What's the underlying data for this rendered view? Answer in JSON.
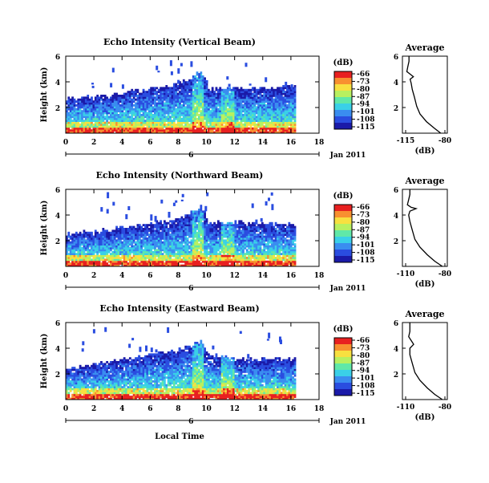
{
  "chart_data": [
    {
      "type": "heatmap",
      "title": "Echo Intensity (Vertical Beam)",
      "ylabel": "Height (km)",
      "xlim": [
        0,
        18
      ],
      "ylim": [
        0,
        6
      ],
      "xticks": [
        "0",
        "2",
        "4",
        "6",
        "8",
        "10",
        "12",
        "14",
        "16",
        "18"
      ],
      "yticks": [
        "2",
        "4",
        "6"
      ],
      "day_marker": "6",
      "date_label": "Jan 2011",
      "colorbar": {
        "unit": "(dB)",
        "ticks": [
          "-66",
          "-73",
          "-80",
          "-87",
          "-94",
          "-101",
          "-108",
          "-115"
        ]
      },
      "average": {
        "title": "Average",
        "xlabel": "(dB)",
        "xticks": [
          "-115",
          "-80"
        ],
        "yticks": [
          "2",
          "4",
          "6"
        ],
        "profile": [
          [
            -84,
            0
          ],
          [
            -90,
            0.4
          ],
          [
            -97,
            0.9
          ],
          [
            -103,
            1.5
          ],
          [
            -106,
            2.1
          ],
          [
            -108,
            2.8
          ],
          [
            -110,
            3.4
          ],
          [
            -111,
            3.9
          ],
          [
            -112,
            4.2
          ],
          [
            -109,
            4.4
          ],
          [
            -112,
            4.6
          ],
          [
            -115,
            4.8
          ],
          [
            -114,
            5.2
          ],
          [
            -113,
            5.6
          ],
          [
            -113,
            6
          ]
        ]
      },
      "echo_top_km": [
        2.8,
        2.8,
        2.9,
        2.9,
        3.0,
        3.0,
        3.1,
        3.2,
        3.3,
        3.4,
        3.5,
        3.6,
        3.7,
        3.8,
        3.9,
        4.2,
        4.6,
        4.9,
        3.4,
        3.6,
        3.6,
        3.6,
        3.6,
        3.6,
        3.6,
        3.6,
        3.6,
        3.7,
        3.8,
        3.7
      ]
    },
    {
      "type": "heatmap",
      "title": "Echo Intensity (Northward Beam)",
      "ylabel": "Height (km)",
      "xlim": [
        0,
        18
      ],
      "ylim": [
        0,
        6
      ],
      "xticks": [
        "0",
        "2",
        "4",
        "6",
        "8",
        "10",
        "12",
        "14",
        "16",
        "18"
      ],
      "yticks": [
        "2",
        "4",
        "6"
      ],
      "day_marker": "6",
      "date_label": "Jan 2011",
      "colorbar": {
        "unit": "(dB)",
        "ticks": [
          "-66",
          "-73",
          "-80",
          "-87",
          "-94",
          "-101",
          "-108",
          "-115"
        ]
      },
      "average": {
        "title": "Average",
        "xlabel": "(dB)",
        "xticks": [
          "-110",
          "-80"
        ],
        "yticks": [
          "2",
          "4",
          "6"
        ],
        "profile": [
          [
            -82,
            0
          ],
          [
            -88,
            0.4
          ],
          [
            -94,
            0.9
          ],
          [
            -100,
            1.5
          ],
          [
            -104,
            2.1
          ],
          [
            -106,
            2.8
          ],
          [
            -108,
            3.5
          ],
          [
            -109,
            4.0
          ],
          [
            -108,
            4.3
          ],
          [
            -103,
            4.5
          ],
          [
            -107,
            4.6
          ],
          [
            -110,
            4.8
          ],
          [
            -109,
            5.2
          ],
          [
            -108,
            5.6
          ],
          [
            -108,
            6
          ]
        ]
      },
      "echo_top_km": [
        2.6,
        2.6,
        2.7,
        2.8,
        2.8,
        2.9,
        3.0,
        3.1,
        3.2,
        3.3,
        3.4,
        3.5,
        3.6,
        3.7,
        3.8,
        4.0,
        4.4,
        4.8,
        3.4,
        3.5,
        3.5,
        3.5,
        3.5,
        3.4,
        3.4,
        3.4,
        3.4,
        3.4,
        3.4,
        3.4
      ]
    },
    {
      "type": "heatmap",
      "title": "Echo Intensity (Eastward Beam)",
      "ylabel": "Height (km)",
      "xlim": [
        0,
        18
      ],
      "ylim": [
        0,
        6
      ],
      "xticks": [
        "0",
        "2",
        "4",
        "6",
        "8",
        "10",
        "12",
        "14",
        "16",
        "18"
      ],
      "yticks": [
        "2",
        "4",
        "6"
      ],
      "day_marker": "6",
      "date_label": "Jan 2011",
      "xlabel": "Local Time",
      "colorbar": {
        "unit": "(dB)",
        "ticks": [
          "-66",
          "-73",
          "-80",
          "-87",
          "-94",
          "-101",
          "-108",
          "-115"
        ]
      },
      "average": {
        "title": "Average",
        "xlabel": "(dB)",
        "xticks": [
          "-110",
          "-80"
        ],
        "yticks": [
          "2",
          "4",
          "6"
        ],
        "profile": [
          [
            -82,
            0
          ],
          [
            -88,
            0.4
          ],
          [
            -94,
            0.9
          ],
          [
            -100,
            1.5
          ],
          [
            -104,
            2.1
          ],
          [
            -106,
            2.8
          ],
          [
            -108,
            3.5
          ],
          [
            -108,
            4.0
          ],
          [
            -105,
            4.3
          ],
          [
            -107,
            4.6
          ],
          [
            -109,
            4.9
          ],
          [
            -108,
            5.3
          ],
          [
            -108,
            5.7
          ],
          [
            -108,
            6
          ]
        ]
      },
      "echo_top_km": [
        2.6,
        2.6,
        2.7,
        2.8,
        2.9,
        3.0,
        3.1,
        3.2,
        3.3,
        3.4,
        3.5,
        3.6,
        3.7,
        3.8,
        3.9,
        4.1,
        4.4,
        4.7,
        3.5,
        3.5,
        3.4,
        3.3,
        3.2,
        3.2,
        3.2,
        3.2,
        3.3,
        3.3,
        3.2,
        3.2
      ]
    }
  ],
  "colors": {
    "scale": [
      "#1a1aa8",
      "#2a4de0",
      "#3a8df0",
      "#3ad0e8",
      "#60e8a8",
      "#b8f060",
      "#f8e040",
      "#f89030",
      "#e82020"
    ]
  }
}
